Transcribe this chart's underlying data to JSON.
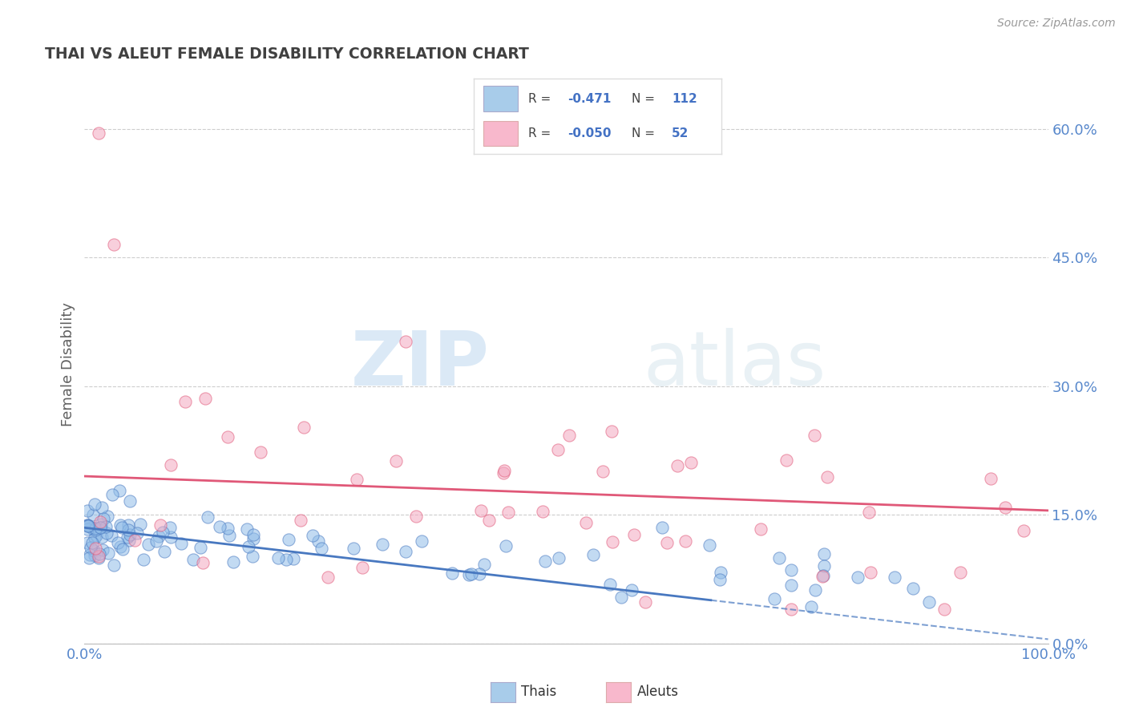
{
  "title": "THAI VS ALEUT FEMALE DISABILITY CORRELATION CHART",
  "source": "Source: ZipAtlas.com",
  "ylabel": "Female Disability",
  "watermark": "ZIPatlas",
  "ytick_labels": [
    "0.0%",
    "15.0%",
    "30.0%",
    "45.0%",
    "60.0%"
  ],
  "ytick_values": [
    0.0,
    0.15,
    0.3,
    0.45,
    0.6
  ],
  "ymin": 0.0,
  "ymax": 0.65,
  "xmin": 0.0,
  "xmax": 100.0,
  "thai_dot_color": "#90bce8",
  "aleut_dot_color": "#f4a8c0",
  "thai_line_color": "#4878c0",
  "aleut_line_color": "#e05878",
  "background_color": "#ffffff",
  "grid_color": "#c8c8c8",
  "title_color": "#404040",
  "axis_label_color": "#5888cc",
  "legend_thai_color": "#a8ccea",
  "legend_aleut_color": "#f8b8cc",
  "thai_trend_x0": 0.0,
  "thai_trend_y0": 0.135,
  "thai_trend_x1": 100.0,
  "thai_trend_y1": 0.005,
  "thai_trend_solid_end": 65.0,
  "aleut_trend_x0": 0.0,
  "aleut_trend_y0": 0.195,
  "aleut_trend_x1": 100.0,
  "aleut_trend_y1": 0.155,
  "thai_scatter_seed": 42,
  "aleut_scatter_seed": 99,
  "dot_size": 120,
  "dot_alpha": 0.55,
  "dot_linewidth": 0.8
}
